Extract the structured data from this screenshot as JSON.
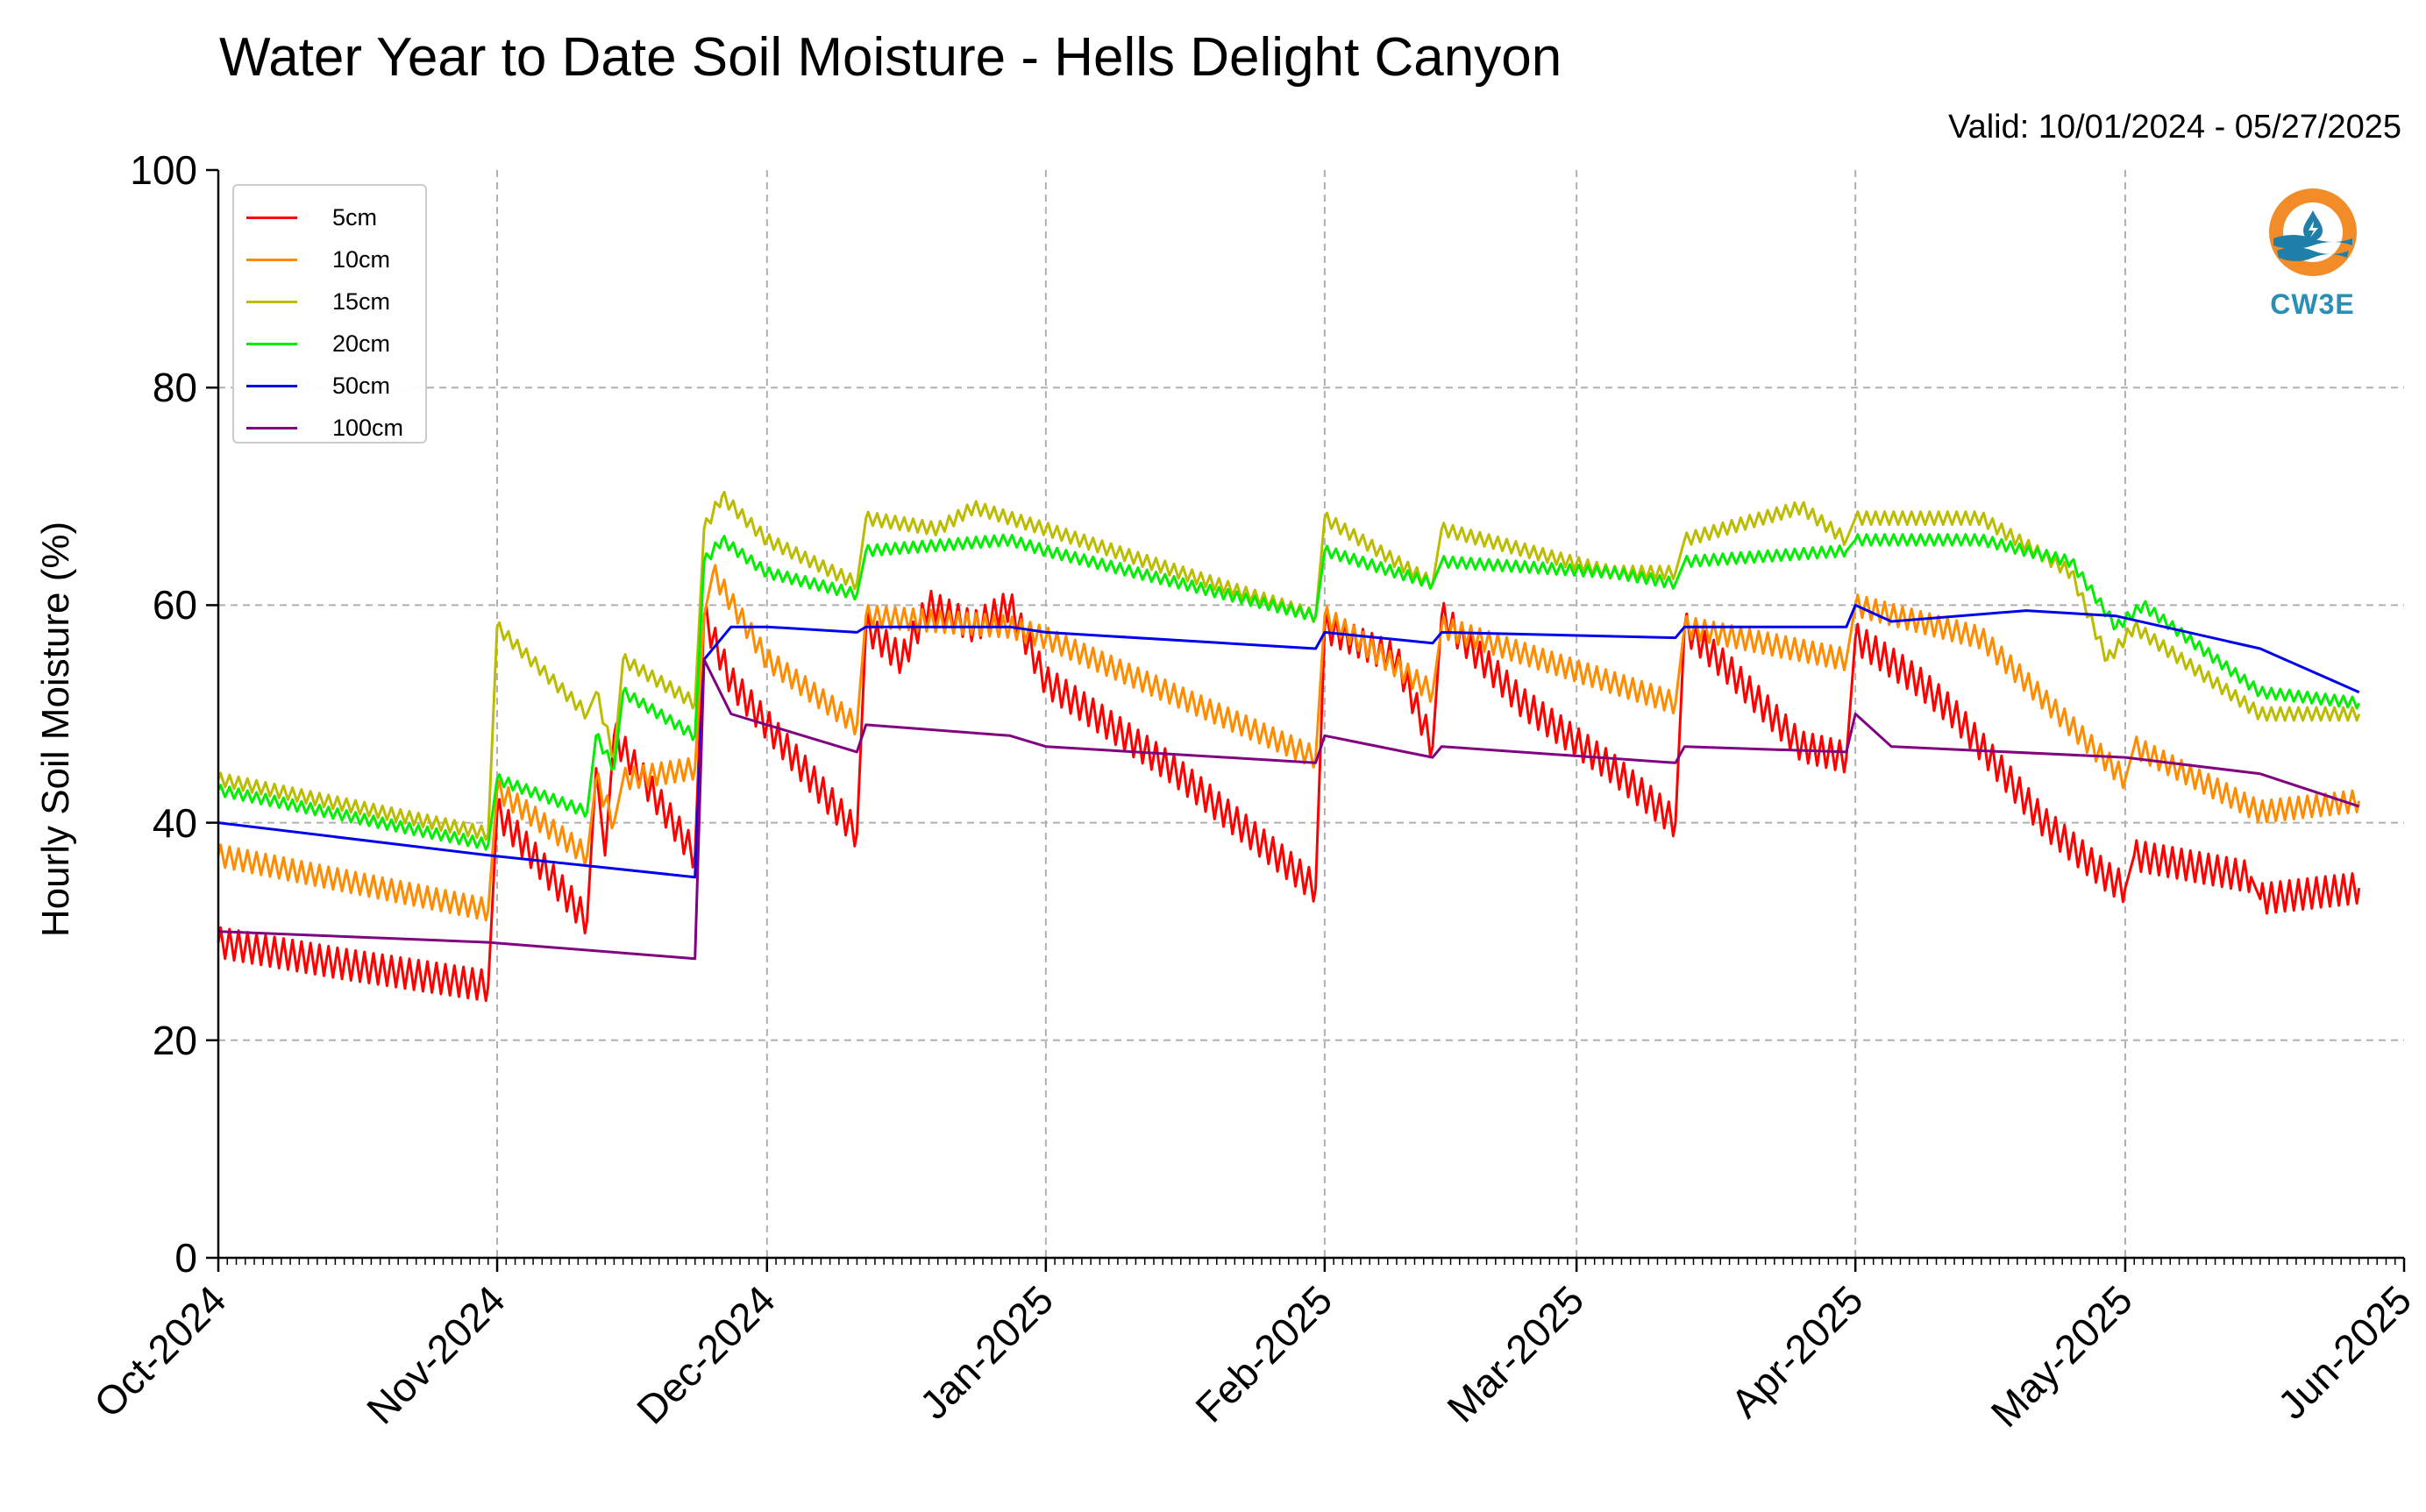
{
  "chart_data": {
    "type": "line",
    "title": "Water Year to Date Soil Moisture - Hells Delight Canyon",
    "subtitle": "Valid: 10/01/2024 - 05/27/2025",
    "ylabel": "Hourly Soil Moisture (%)",
    "xlabel": "",
    "ylim": [
      0,
      100
    ],
    "yticks": [
      0,
      20,
      40,
      60,
      80,
      100
    ],
    "xlim": [
      "2024-10-01",
      "2025-06-01"
    ],
    "xticks": [
      {
        "date": "2024-10-01",
        "label": "Oct-2024"
      },
      {
        "date": "2024-11-01",
        "label": "Nov-2024"
      },
      {
        "date": "2024-12-01",
        "label": "Dec-2024"
      },
      {
        "date": "2025-01-01",
        "label": "Jan-2025"
      },
      {
        "date": "2025-02-01",
        "label": "Feb-2025"
      },
      {
        "date": "2025-03-01",
        "label": "Mar-2025"
      },
      {
        "date": "2025-04-01",
        "label": "Apr-2025"
      },
      {
        "date": "2025-05-01",
        "label": "May-2025"
      },
      {
        "date": "2025-06-01",
        "label": "Jun-2025"
      }
    ],
    "grid": true,
    "legend_position": "top-left",
    "series": [
      {
        "name": "5cm",
        "color": "#ff0000",
        "diurnal_amplitude": 1.4,
        "points": [
          [
            "2024-10-01",
            29
          ],
          [
            "2024-10-15",
            27
          ],
          [
            "2024-10-31",
            25
          ],
          [
            "2024-11-01",
            41
          ],
          [
            "2024-11-11",
            31
          ],
          [
            "2024-11-12",
            45
          ],
          [
            "2024-11-13",
            37
          ],
          [
            "2024-11-14",
            48
          ],
          [
            "2024-11-23",
            37
          ],
          [
            "2024-11-24",
            59
          ],
          [
            "2024-11-27",
            53
          ],
          [
            "2024-12-01",
            49
          ],
          [
            "2024-12-11",
            39
          ],
          [
            "2024-12-12",
            58
          ],
          [
            "2024-12-16",
            55
          ],
          [
            "2024-12-19",
            60
          ],
          [
            "2024-12-24",
            58
          ],
          [
            "2024-12-28",
            60
          ],
          [
            "2025-01-01",
            53
          ],
          [
            "2025-01-15",
            45
          ],
          [
            "2025-01-31",
            34
          ],
          [
            "2025-02-01",
            58
          ],
          [
            "2025-02-09",
            55
          ],
          [
            "2025-02-13",
            47
          ],
          [
            "2025-02-14",
            59
          ],
          [
            "2025-02-23",
            51
          ],
          [
            "2025-03-05",
            45
          ],
          [
            "2025-03-12",
            40
          ],
          [
            "2025-03-13",
            58
          ],
          [
            "2025-03-18",
            54
          ],
          [
            "2025-03-26",
            47
          ],
          [
            "2025-03-31",
            46
          ],
          [
            "2025-04-01",
            57
          ],
          [
            "2025-04-08",
            53
          ],
          [
            "2025-04-12",
            50
          ],
          [
            "2025-04-22",
            40
          ],
          [
            "2025-04-29",
            35
          ],
          [
            "2025-05-01",
            34
          ],
          [
            "2025-05-02",
            37
          ],
          [
            "2025-05-15",
            35
          ],
          [
            "2025-05-16",
            33
          ],
          [
            "2025-05-27",
            34
          ]
        ]
      },
      {
        "name": "10cm",
        "color": "#ff8c00",
        "diurnal_amplitude": 1.0,
        "points": [
          [
            "2024-10-01",
            37
          ],
          [
            "2024-10-31",
            32
          ],
          [
            "2024-11-01",
            43
          ],
          [
            "2024-11-11",
            37
          ],
          [
            "2024-11-12",
            44
          ],
          [
            "2024-11-14",
            40
          ],
          [
            "2024-11-15",
            44
          ],
          [
            "2024-11-23",
            45
          ],
          [
            "2024-11-24",
            59
          ],
          [
            "2024-11-25",
            63
          ],
          [
            "2024-12-01",
            55
          ],
          [
            "2024-12-11",
            49
          ],
          [
            "2024-12-12",
            59
          ],
          [
            "2024-12-28",
            58
          ],
          [
            "2025-01-01",
            57
          ],
          [
            "2025-01-31",
            46
          ],
          [
            "2025-02-01",
            59
          ],
          [
            "2025-02-13",
            52
          ],
          [
            "2025-02-14",
            58
          ],
          [
            "2025-03-12",
            51
          ],
          [
            "2025-03-13",
            58
          ],
          [
            "2025-03-31",
            55
          ],
          [
            "2025-04-01",
            60
          ],
          [
            "2025-04-15",
            57
          ],
          [
            "2025-05-01",
            44
          ],
          [
            "2025-05-02",
            47
          ],
          [
            "2025-05-16",
            41
          ],
          [
            "2025-05-27",
            42
          ]
        ]
      },
      {
        "name": "15cm",
        "color": "#bbbb00",
        "diurnal_amplitude": 0.6,
        "points": [
          [
            "2024-10-01",
            44
          ],
          [
            "2024-10-31",
            39
          ],
          [
            "2024-11-01",
            58
          ],
          [
            "2024-11-11",
            50
          ],
          [
            "2024-11-12",
            52
          ],
          [
            "2024-11-14",
            46
          ],
          [
            "2024-11-15",
            55
          ],
          [
            "2024-11-23",
            51
          ],
          [
            "2024-11-24",
            67
          ],
          [
            "2024-11-26",
            70
          ],
          [
            "2024-12-01",
            66
          ],
          [
            "2024-12-11",
            62
          ],
          [
            "2024-12-12",
            68
          ],
          [
            "2024-12-20",
            67
          ],
          [
            "2024-12-24",
            69
          ],
          [
            "2024-12-28",
            68
          ],
          [
            "2025-01-01",
            67
          ],
          [
            "2025-01-31",
            59
          ],
          [
            "2025-02-01",
            68
          ],
          [
            "2025-02-13",
            62
          ],
          [
            "2025-02-14",
            67
          ],
          [
            "2025-03-05",
            63
          ],
          [
            "2025-03-12",
            63
          ],
          [
            "2025-03-13",
            66
          ],
          [
            "2025-03-26",
            69
          ],
          [
            "2025-03-31",
            66
          ],
          [
            "2025-04-01",
            68
          ],
          [
            "2025-04-15",
            68
          ],
          [
            "2025-04-25",
            63
          ],
          [
            "2025-04-29",
            55
          ],
          [
            "2025-05-02",
            58
          ],
          [
            "2025-05-16",
            50
          ],
          [
            "2025-05-27",
            50
          ]
        ]
      },
      {
        "name": "20cm",
        "color": "#00ee00",
        "diurnal_amplitude": 0.5,
        "points": [
          [
            "2024-10-01",
            43
          ],
          [
            "2024-10-31",
            38
          ],
          [
            "2024-11-01",
            44
          ],
          [
            "2024-11-11",
            41
          ],
          [
            "2024-11-12",
            48
          ],
          [
            "2024-11-14",
            45
          ],
          [
            "2024-11-15",
            52
          ],
          [
            "2024-11-23",
            48
          ],
          [
            "2024-11-24",
            64
          ],
          [
            "2024-11-26",
            66
          ],
          [
            "2024-12-01",
            63
          ],
          [
            "2024-12-11",
            61
          ],
          [
            "2024-12-12",
            65
          ],
          [
            "2024-12-28",
            66
          ],
          [
            "2025-01-01",
            65
          ],
          [
            "2025-01-31",
            59
          ],
          [
            "2025-02-01",
            65
          ],
          [
            "2025-02-13",
            62
          ],
          [
            "2025-02-14",
            64
          ],
          [
            "2025-03-05",
            63
          ],
          [
            "2025-03-12",
            62
          ],
          [
            "2025-03-13",
            64
          ],
          [
            "2025-03-31",
            65
          ],
          [
            "2025-04-01",
            66
          ],
          [
            "2025-04-15",
            66
          ],
          [
            "2025-04-25",
            64
          ],
          [
            "2025-04-30",
            58
          ],
          [
            "2025-05-03",
            60
          ],
          [
            "2025-05-16",
            52
          ],
          [
            "2025-05-27",
            51
          ]
        ]
      },
      {
        "name": "50cm",
        "color": "#0000ee",
        "diurnal_amplitude": 0,
        "points": [
          [
            "2024-10-01",
            40
          ],
          [
            "2024-10-31",
            37
          ],
          [
            "2024-11-23",
            35
          ],
          [
            "2024-11-24",
            55
          ],
          [
            "2024-11-27",
            58
          ],
          [
            "2024-12-01",
            58
          ],
          [
            "2024-12-11",
            57.5
          ],
          [
            "2024-12-12",
            58
          ],
          [
            "2024-12-28",
            58
          ],
          [
            "2025-01-01",
            57.5
          ],
          [
            "2025-01-31",
            56
          ],
          [
            "2025-02-01",
            57.5
          ],
          [
            "2025-02-13",
            56.5
          ],
          [
            "2025-02-14",
            57.5
          ],
          [
            "2025-03-12",
            57
          ],
          [
            "2025-03-13",
            58
          ],
          [
            "2025-03-31",
            58
          ],
          [
            "2025-04-01",
            60
          ],
          [
            "2025-04-05",
            58.5
          ],
          [
            "2025-04-20",
            59.5
          ],
          [
            "2025-04-30",
            59
          ],
          [
            "2025-05-16",
            56
          ],
          [
            "2025-05-27",
            52
          ]
        ]
      },
      {
        "name": "100cm",
        "color": "#800080",
        "diurnal_amplitude": 0,
        "points": [
          [
            "2024-10-01",
            30
          ],
          [
            "2024-10-31",
            29
          ],
          [
            "2024-11-23",
            27.5
          ],
          [
            "2024-11-24",
            55
          ],
          [
            "2024-11-27",
            50
          ],
          [
            "2024-12-01",
            49
          ],
          [
            "2024-12-11",
            46.5
          ],
          [
            "2024-12-12",
            49
          ],
          [
            "2024-12-28",
            48
          ],
          [
            "2025-01-01",
            47
          ],
          [
            "2025-01-31",
            45.5
          ],
          [
            "2025-02-01",
            48
          ],
          [
            "2025-02-13",
            46
          ],
          [
            "2025-02-14",
            47
          ],
          [
            "2025-03-12",
            45.5
          ],
          [
            "2025-03-13",
            47
          ],
          [
            "2025-03-31",
            46.5
          ],
          [
            "2025-04-01",
            50
          ],
          [
            "2025-04-05",
            47
          ],
          [
            "2025-05-01",
            46
          ],
          [
            "2025-05-16",
            44.5
          ],
          [
            "2025-05-27",
            41.5
          ]
        ]
      }
    ]
  },
  "logo": {
    "text": "CW3E",
    "ring_color": "#f28c28",
    "wave_color": "#1f7fa8"
  }
}
